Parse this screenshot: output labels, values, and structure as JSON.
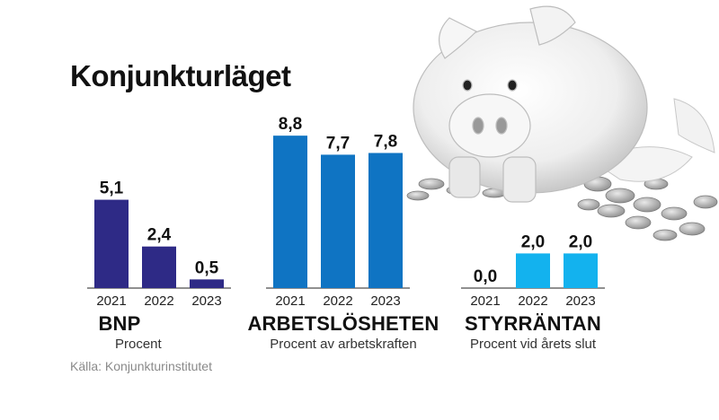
{
  "title": "Konjunkturläget",
  "source": "Källa: Konjunkturinstitutet",
  "chart_data": [
    {
      "type": "bar",
      "title": "BNP",
      "subtitle": "Procent",
      "categories": [
        "2021",
        "2022",
        "2023"
      ],
      "values": [
        5.1,
        2.4,
        0.5
      ],
      "labels": [
        "5,1",
        "2,4",
        "0,5"
      ],
      "color": "#2e2a86"
    },
    {
      "type": "bar",
      "title": "ARBETSLÖSHETEN",
      "subtitle": "Procent av arbetskraften",
      "categories": [
        "2021",
        "2022",
        "2023"
      ],
      "values": [
        8.8,
        7.7,
        7.8
      ],
      "labels": [
        "8,8",
        "7,7",
        "7,8"
      ],
      "color": "#0f74c3"
    },
    {
      "type": "bar",
      "title": "STYRRÄNTAN",
      "subtitle": "Procent vid årets slut",
      "categories": [
        "2021",
        "2022",
        "2023"
      ],
      "values": [
        0.0,
        2.0,
        2.0
      ],
      "labels": [
        "0,0",
        "2,0",
        "2,0"
      ],
      "color": "#13b2ee"
    }
  ]
}
